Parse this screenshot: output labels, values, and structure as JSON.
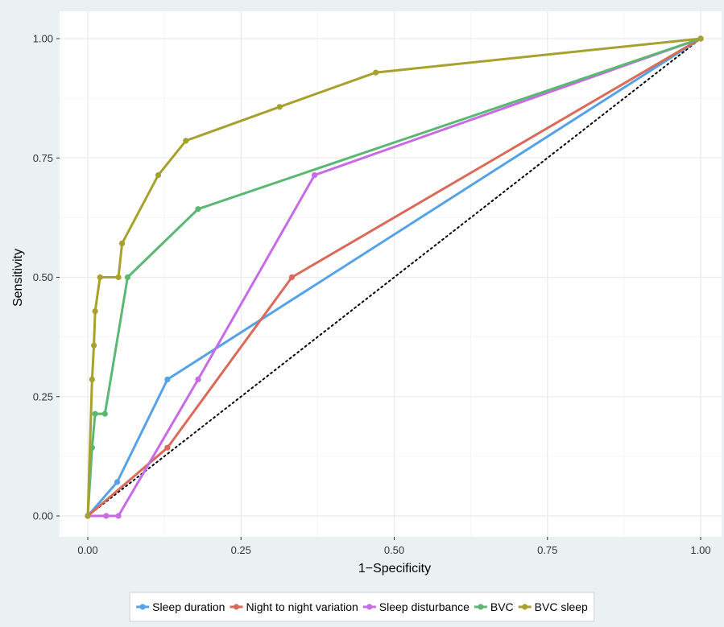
{
  "chart_data": {
    "type": "line",
    "title": "",
    "xlabel": "1−Specificity",
    "ylabel": "Sensitivity",
    "xlim": [
      0,
      1
    ],
    "ylim": [
      0,
      1
    ],
    "xticks": [
      0.0,
      0.25,
      0.5,
      0.75,
      1.0
    ],
    "yticks": [
      0.0,
      0.25,
      0.5,
      0.75,
      1.0
    ],
    "xtick_labels": [
      "0.00",
      "0.25",
      "0.50",
      "0.75",
      "1.00"
    ],
    "ytick_labels": [
      "0.00",
      "0.25",
      "0.50",
      "0.75",
      "1.00"
    ],
    "grid": true,
    "legend_position": "bottom",
    "reference_line": {
      "style": "dotted",
      "color": "#000000",
      "points": [
        [
          0,
          0
        ],
        [
          1,
          1
        ]
      ]
    },
    "series": [
      {
        "name": "Sleep duration",
        "color": "#56A2E8",
        "points": [
          [
            0,
            0
          ],
          [
            0.048,
            0.071
          ],
          [
            0.13,
            0.286
          ],
          [
            1.0,
            1.0
          ]
        ]
      },
      {
        "name": "Night to night variation",
        "color": "#DA6A59",
        "points": [
          [
            0,
            0
          ],
          [
            0.13,
            0.143
          ],
          [
            0.333,
            0.5
          ],
          [
            1.0,
            1.0
          ]
        ]
      },
      {
        "name": "Sleep disturbance",
        "color": "#C76BE6",
        "points": [
          [
            0,
            0
          ],
          [
            0.03,
            0.0
          ],
          [
            0.05,
            0.0
          ],
          [
            0.18,
            0.286
          ],
          [
            0.37,
            0.714
          ],
          [
            1.0,
            1.0
          ]
        ]
      },
      {
        "name": "BVC",
        "color": "#5BB873",
        "points": [
          [
            0,
            0
          ],
          [
            0.007,
            0.143
          ],
          [
            0.012,
            0.214
          ],
          [
            0.028,
            0.214
          ],
          [
            0.065,
            0.5
          ],
          [
            0.18,
            0.643
          ],
          [
            1.0,
            1.0
          ]
        ]
      },
      {
        "name": "BVC sleep",
        "color": "#A7A12E",
        "points": [
          [
            0,
            0
          ],
          [
            0.007,
            0.286
          ],
          [
            0.01,
            0.357
          ],
          [
            0.012,
            0.429
          ],
          [
            0.02,
            0.5
          ],
          [
            0.05,
            0.5
          ],
          [
            0.056,
            0.571
          ],
          [
            0.115,
            0.714
          ],
          [
            0.16,
            0.786
          ],
          [
            0.313,
            0.857
          ],
          [
            0.47,
            0.929
          ],
          [
            1.0,
            1.0
          ]
        ]
      }
    ]
  },
  "colors": {
    "page_background": "#EBF1F3",
    "panel_background": "#FFFFFF",
    "grid_major": "#EBEBEB",
    "grid_minor": "#F5F5F5",
    "text": "#000000",
    "tick_text": "#333333"
  }
}
